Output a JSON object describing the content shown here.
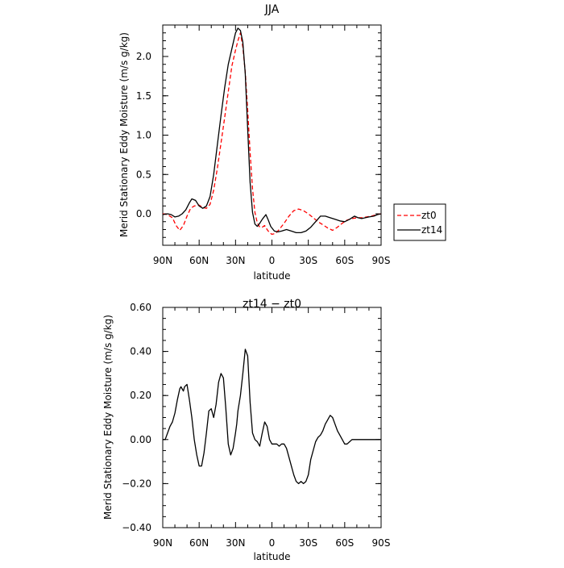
{
  "chart_data": [
    {
      "type": "line",
      "title": "JJA",
      "xlabel": "latitude",
      "ylabel": "Merid Stationary Eddy Moisture (m/s g/kg)",
      "xlim": [
        90,
        -90
      ],
      "ylim": [
        -0.4,
        2.4
      ],
      "x_ticks": [
        90,
        60,
        30,
        0,
        -30,
        -60,
        -90
      ],
      "x_tick_labels": [
        "90N",
        "60N",
        "30N",
        "0",
        "30S",
        "60S",
        "90S"
      ],
      "y_ticks": [
        0.0,
        0.5,
        1.0,
        1.5,
        2.0
      ],
      "y_tick_labels": [
        "0.0",
        "0.5",
        "1.0",
        "1.5",
        "2.0"
      ],
      "legend_position": "right",
      "series": [
        {
          "name": "zt0",
          "color": "#ff0000",
          "dash": "dashed",
          "x": [
            90,
            86,
            82,
            79,
            76,
            73,
            70,
            67,
            64,
            60,
            57,
            54,
            51,
            48,
            45,
            42,
            39,
            36,
            33,
            30,
            28,
            26,
            24,
            22,
            20,
            18,
            16,
            14,
            12,
            10,
            8,
            6,
            4,
            2,
            0,
            -3,
            -6,
            -10,
            -14,
            -18,
            -22,
            -26,
            -30,
            -34,
            -38,
            -42,
            -46,
            -50,
            -54,
            -58,
            -62,
            -66,
            -70,
            -74,
            -78,
            -82,
            -86,
            -90
          ],
          "values": [
            0.0,
            -0.01,
            -0.05,
            -0.15,
            -0.21,
            -0.15,
            -0.03,
            0.07,
            0.1,
            0.11,
            0.08,
            0.07,
            0.12,
            0.3,
            0.58,
            0.9,
            1.22,
            1.55,
            1.88,
            2.08,
            2.2,
            2.3,
            2.12,
            1.8,
            1.32,
            0.78,
            0.32,
            0.02,
            -0.12,
            -0.17,
            -0.17,
            -0.15,
            -0.2,
            -0.24,
            -0.26,
            -0.25,
            -0.2,
            -0.12,
            -0.03,
            0.04,
            0.06,
            0.04,
            0.0,
            -0.05,
            -0.1,
            -0.14,
            -0.18,
            -0.21,
            -0.17,
            -0.12,
            -0.08,
            -0.06,
            -0.05,
            -0.05,
            -0.04,
            -0.03,
            -0.01,
            0.0
          ]
        },
        {
          "name": "zt14",
          "color": "#000000",
          "dash": "solid",
          "x": [
            90,
            86,
            83,
            80,
            77,
            74,
            71,
            68,
            66,
            63,
            60,
            57,
            54,
            51,
            48,
            45,
            42,
            39,
            36,
            33,
            30,
            28,
            26,
            24,
            22,
            20,
            18,
            16,
            14,
            12,
            10,
            8,
            5,
            3,
            1,
            -2,
            -5,
            -8,
            -12,
            -16,
            -20,
            -24,
            -28,
            -32,
            -36,
            -40,
            -44,
            -48,
            -52,
            -56,
            -60,
            -64,
            -68,
            -71,
            -74,
            -77,
            -80,
            -84,
            -87,
            -90
          ],
          "values": [
            -0.01,
            0.0,
            -0.01,
            -0.04,
            -0.03,
            0.0,
            0.05,
            0.14,
            0.19,
            0.17,
            0.1,
            0.07,
            0.1,
            0.22,
            0.5,
            0.88,
            1.25,
            1.6,
            1.9,
            2.1,
            2.3,
            2.36,
            2.33,
            2.18,
            1.78,
            1.08,
            0.4,
            0.02,
            -0.13,
            -0.16,
            -0.12,
            -0.07,
            -0.01,
            -0.08,
            -0.16,
            -0.22,
            -0.23,
            -0.22,
            -0.2,
            -0.22,
            -0.24,
            -0.24,
            -0.22,
            -0.17,
            -0.1,
            -0.03,
            -0.03,
            -0.05,
            -0.07,
            -0.09,
            -0.1,
            -0.07,
            -0.03,
            -0.05,
            -0.06,
            -0.05,
            -0.04,
            -0.03,
            -0.01,
            0.0
          ]
        }
      ]
    },
    {
      "type": "line",
      "title": "zt14 − zt0",
      "xlabel": "latitude",
      "ylabel": "Merid Stationary Eddy Moisture (m/s g/kg)",
      "xlim": [
        90,
        -90
      ],
      "ylim": [
        -0.4,
        0.6
      ],
      "x_ticks": [
        90,
        60,
        30,
        0,
        -30,
        -60,
        -90
      ],
      "x_tick_labels": [
        "90N",
        "60N",
        "30N",
        "0",
        "30S",
        "60S",
        "90S"
      ],
      "y_ticks": [
        -0.4,
        -0.2,
        0.0,
        0.2,
        0.4,
        0.6
      ],
      "y_tick_labels": [
        "−0.40",
        "−0.20",
        "0.00",
        "0.20",
        "0.40",
        "0.60"
      ],
      "series": [
        {
          "color": "#000000",
          "dash": "solid",
          "x": [
            90,
            88,
            86,
            84,
            82,
            80,
            78,
            76,
            75,
            74,
            73,
            72,
            70,
            68,
            66,
            64,
            62,
            60,
            58,
            56,
            54,
            52,
            50,
            48,
            46,
            44,
            42,
            40,
            38,
            36,
            34,
            32,
            30,
            29,
            28,
            26,
            24,
            22,
            20,
            18,
            16,
            14,
            12,
            10,
            9,
            8,
            6,
            4,
            2,
            0,
            -2,
            -4,
            -6,
            -8,
            -10,
            -12,
            -14,
            -16,
            -18,
            -20,
            -22,
            -24,
            -26,
            -28,
            -30,
            -32,
            -34,
            -36,
            -38,
            -40,
            -42,
            -44,
            -46,
            -48,
            -50,
            -52,
            -54,
            -56,
            -58,
            -60,
            -62,
            -64,
            -66,
            -68,
            -70,
            -72,
            -74,
            -76,
            -78,
            -80,
            -82,
            -84,
            -86,
            -88,
            -90
          ],
          "values": [
            0.0,
            0.0,
            0.03,
            0.06,
            0.08,
            0.12,
            0.18,
            0.23,
            0.24,
            0.23,
            0.22,
            0.24,
            0.25,
            0.18,
            0.1,
            0.0,
            -0.07,
            -0.12,
            -0.12,
            -0.06,
            0.03,
            0.13,
            0.14,
            0.1,
            0.16,
            0.26,
            0.3,
            0.28,
            0.14,
            -0.02,
            -0.07,
            -0.04,
            0.03,
            0.07,
            0.13,
            0.2,
            0.3,
            0.41,
            0.38,
            0.17,
            0.03,
            0.0,
            -0.01,
            -0.03,
            0.0,
            0.03,
            0.08,
            0.06,
            0.0,
            -0.02,
            -0.02,
            -0.02,
            -0.03,
            -0.02,
            -0.02,
            -0.04,
            -0.08,
            -0.12,
            -0.16,
            -0.19,
            -0.2,
            -0.19,
            -0.2,
            -0.19,
            -0.16,
            -0.09,
            -0.05,
            -0.01,
            0.01,
            0.02,
            0.04,
            0.07,
            0.09,
            0.11,
            0.1,
            0.07,
            0.04,
            0.02,
            0.0,
            -0.02,
            -0.02,
            -0.01,
            0.0,
            0.0,
            0.0,
            0.0,
            0.0,
            0.0,
            0.0,
            0.0,
            0.0,
            0.0,
            0.0,
            0.0,
            0.0
          ]
        }
      ]
    }
  ]
}
